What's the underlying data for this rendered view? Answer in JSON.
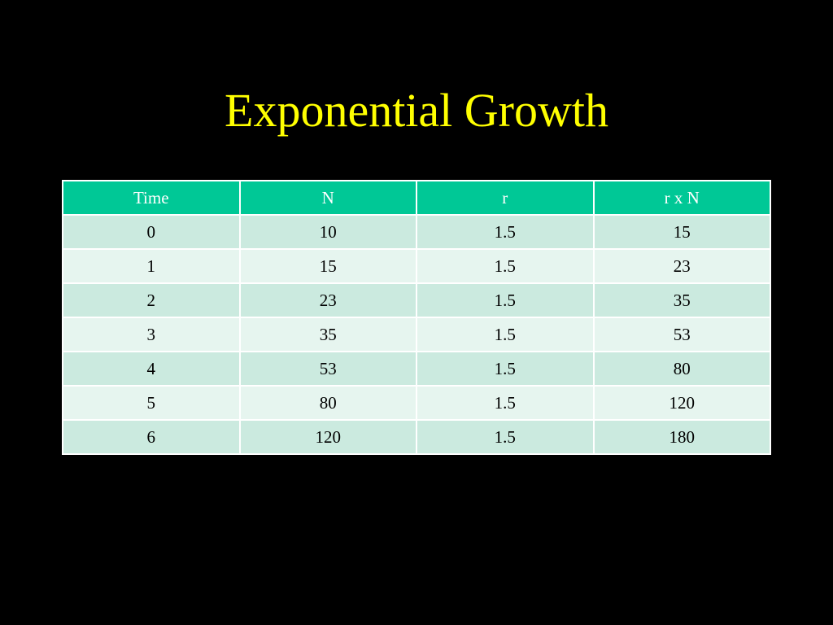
{
  "title": "Exponential Growth",
  "colors": {
    "background": "#000000",
    "title": "#ffff00",
    "header_bg": "#00c896",
    "row_odd_bg": "#cbeadf",
    "row_even_bg": "#e6f5ef"
  },
  "table": {
    "headers": [
      "Time",
      "N",
      "r",
      "r x N"
    ],
    "rows": [
      [
        "0",
        "10",
        "1.5",
        "15"
      ],
      [
        "1",
        "15",
        "1.5",
        "23"
      ],
      [
        "2",
        "23",
        "1.5",
        "35"
      ],
      [
        "3",
        "35",
        "1.5",
        "53"
      ],
      [
        "4",
        "53",
        "1.5",
        "80"
      ],
      [
        "5",
        "80",
        "1.5",
        "120"
      ],
      [
        "6",
        "120",
        "1.5",
        "180"
      ]
    ]
  }
}
